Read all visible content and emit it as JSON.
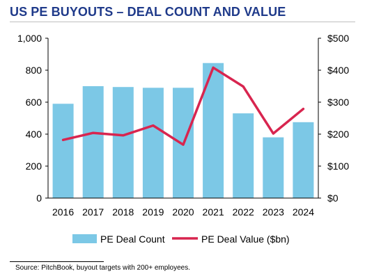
{
  "title": "US PE BUYOUTS – DEAL COUNT AND VALUE",
  "source": "Source:  PitchBook, buyout targets with 200+ employees.",
  "colors": {
    "title": "#1f3a8a",
    "bar": "#7cc8e6",
    "line": "#d8254f",
    "axis": "#000000"
  },
  "chart_data": {
    "type": "bar",
    "title": "US PE BUYOUTS – DEAL COUNT AND VALUE",
    "categories": [
      "2016",
      "2017",
      "2018",
      "2019",
      "2020",
      "2021",
      "2022",
      "2023",
      "2024"
    ],
    "series": [
      {
        "name": "PE Deal Count",
        "type": "bar",
        "axis": "left",
        "values": [
          590,
          700,
          695,
          690,
          690,
          845,
          530,
          380,
          475
        ]
      },
      {
        "name": "PE Deal Value ($bn)",
        "type": "line",
        "axis": "right",
        "values": [
          182,
          204,
          196,
          227,
          167,
          408,
          349,
          202,
          279
        ]
      }
    ],
    "y_left": {
      "ylim": [
        0,
        1000
      ],
      "ticks": [
        0,
        200,
        400,
        600,
        800,
        1000
      ],
      "tick_labels": [
        "0",
        "200",
        "400",
        "600",
        "800",
        "1,000"
      ]
    },
    "y_right": {
      "ylim": [
        0,
        500
      ],
      "ticks": [
        0,
        100,
        200,
        300,
        400,
        500
      ],
      "tick_labels": [
        "$0",
        "$100",
        "$200",
        "$300",
        "$400",
        "$500"
      ]
    },
    "grid": false,
    "legend": "bottom"
  }
}
